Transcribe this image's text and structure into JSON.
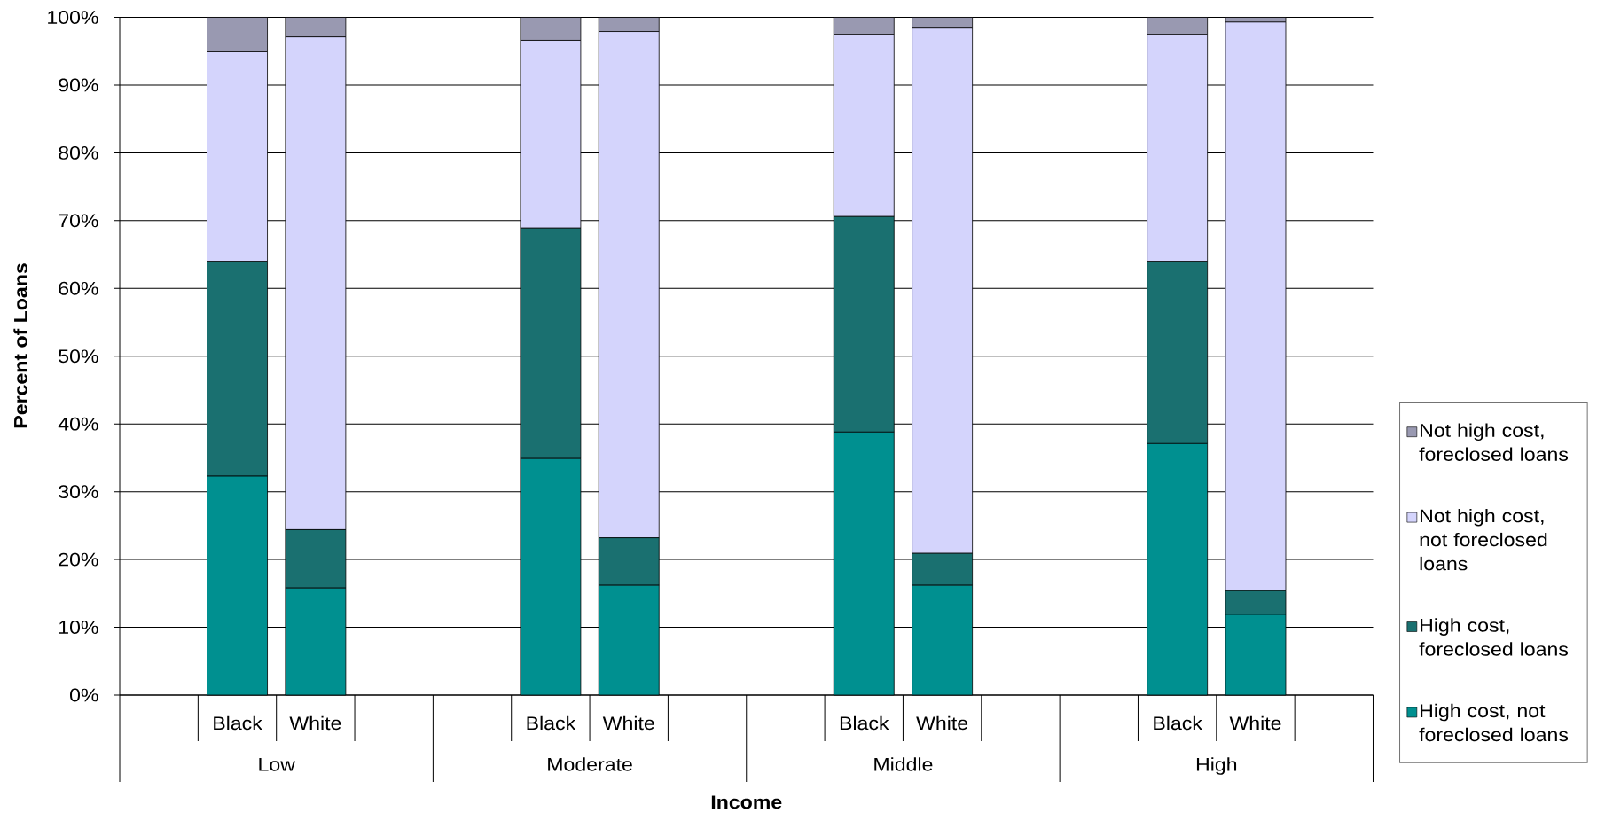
{
  "chart_data": {
    "type": "bar",
    "stacked": true,
    "xlabel": "Income",
    "ylabel": "Percent of Loans",
    "categories": [
      null,
      "Black",
      "White",
      null,
      null,
      "Black",
      "White",
      null,
      null,
      "Black",
      "White",
      null,
      null,
      "Black",
      "White",
      null
    ],
    "annotations": [
      "Low",
      "Moderate",
      "Middle",
      "High"
    ],
    "series": [
      {
        "name": "High cost, not foreclosed loans",
        "color": "#009090",
        "values": [
          null,
          32.3,
          15.8,
          null,
          null,
          34.9,
          16.2,
          null,
          null,
          38.8,
          16.2,
          null,
          null,
          37.1,
          11.9,
          null
        ]
      },
      {
        "name": "High cost, foreclosed loans",
        "color": "#1a7070",
        "values": [
          null,
          31.7,
          8.6,
          null,
          null,
          34.0,
          7.0,
          null,
          null,
          31.8,
          4.7,
          null,
          null,
          26.9,
          3.5,
          null
        ]
      },
      {
        "name": "Not high cost, not foreclosed loans",
        "color": "#d4d4fc",
        "values": [
          null,
          30.9,
          72.7,
          null,
          null,
          27.7,
          74.7,
          null,
          null,
          26.9,
          77.5,
          null,
          null,
          33.5,
          83.9,
          null
        ]
      },
      {
        "name": "Not high cost, foreclosed loans",
        "color": "#9999b1",
        "values": [
          null,
          5.1,
          2.9,
          null,
          null,
          3.4,
          2.1,
          null,
          null,
          2.5,
          1.6,
          null,
          null,
          2.5,
          0.7,
          null
        ]
      }
    ],
    "ylim": [
      0,
      100
    ],
    "yticks": [
      {
        "value": 0,
        "label": "0%"
      },
      {
        "value": 10,
        "label": "10%"
      },
      {
        "value": 20,
        "label": "20%"
      },
      {
        "value": 30,
        "label": "30%"
      },
      {
        "value": 40,
        "label": "40%"
      },
      {
        "value": 50,
        "label": "50%"
      },
      {
        "value": 60,
        "label": "60%"
      },
      {
        "value": 70,
        "label": "70%"
      },
      {
        "value": 80,
        "label": "80%"
      },
      {
        "value": 90,
        "label": "90%"
      },
      {
        "value": 100,
        "label": "100%"
      }
    ],
    "grid": "y",
    "legend": "right"
  }
}
